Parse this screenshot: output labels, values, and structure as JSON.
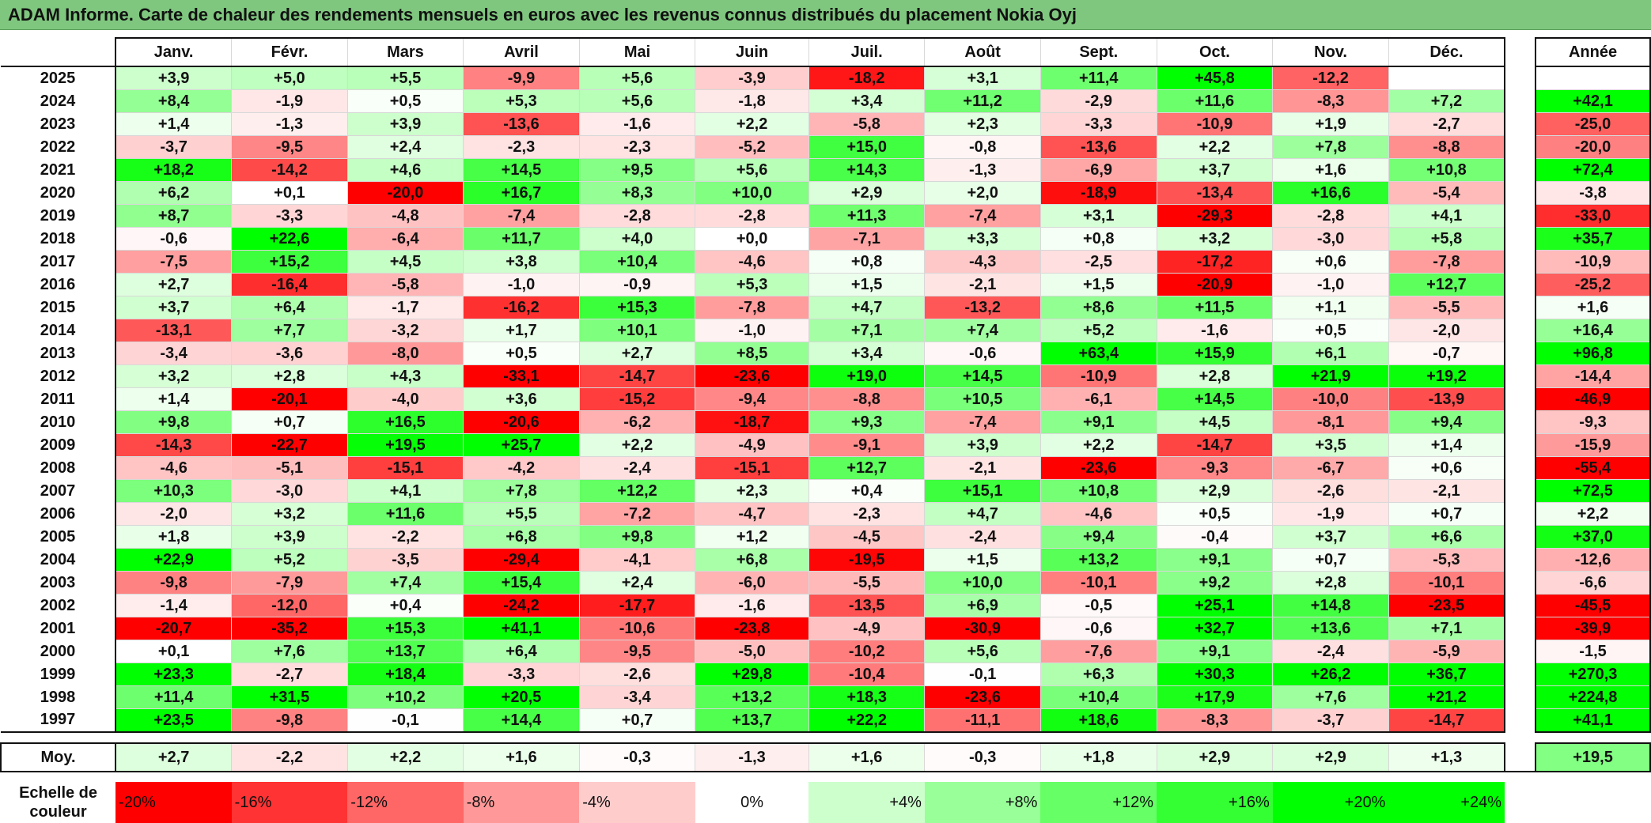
{
  "title": "ADAM Informe. Carte de chaleur des rendements mensuels en euros avec les revenus connus distribués du placement Nokia Oyj",
  "headers": {
    "months": [
      "Janv.",
      "Févr.",
      "Mars",
      "Avril",
      "Mai",
      "Juin",
      "Juil.",
      "Août",
      "Sept.",
      "Oct.",
      "Nov.",
      "Déc."
    ],
    "year": "Année"
  },
  "avg_label": "Moy.",
  "scale_label": "Echelle de couleur",
  "colors": {
    "negative": "#ff0000",
    "neutral": "#ffffff",
    "positive": "#00ff00",
    "title_bg": "#7fc77f"
  },
  "chart_data": {
    "type": "heatmap",
    "title": "ADAM Informe. Carte de chaleur des rendements mensuels en euros avec les revenus connus distribués du placement Nokia Oyj",
    "columns": [
      "Janv.",
      "Févr.",
      "Mars",
      "Avril",
      "Mai",
      "Juin",
      "Juil.",
      "Août",
      "Sept.",
      "Oct.",
      "Nov.",
      "Déc."
    ],
    "rows": [
      {
        "year": "2025",
        "months": [
          "+3,9",
          "+5,0",
          "+5,5",
          "-9,9",
          "+5,6",
          "-3,9",
          "-18,2",
          "+3,1",
          "+11,4",
          "+45,8",
          "-12,2",
          ""
        ],
        "annual": ""
      },
      {
        "year": "2024",
        "months": [
          "+8,4",
          "-1,9",
          "+0,5",
          "+5,3",
          "+5,6",
          "-1,8",
          "+3,4",
          "+11,2",
          "-2,9",
          "+11,6",
          "-8,3",
          "+7,2"
        ],
        "annual": "+42,1"
      },
      {
        "year": "2023",
        "months": [
          "+1,4",
          "-1,3",
          "+3,9",
          "-13,6",
          "-1,6",
          "+2,2",
          "-5,8",
          "+2,3",
          "-3,3",
          "-10,9",
          "+1,9",
          "-2,7"
        ],
        "annual": "-25,0"
      },
      {
        "year": "2022",
        "months": [
          "-3,7",
          "-9,5",
          "+2,4",
          "-2,3",
          "-2,3",
          "-5,2",
          "+15,0",
          "-0,8",
          "-13,6",
          "+2,2",
          "+7,8",
          "-8,8"
        ],
        "annual": "-20,0"
      },
      {
        "year": "2021",
        "months": [
          "+18,2",
          "-14,2",
          "+4,6",
          "+14,5",
          "+9,5",
          "+5,6",
          "+14,3",
          "-1,3",
          "-6,9",
          "+3,7",
          "+1,6",
          "+10,8"
        ],
        "annual": "+72,4"
      },
      {
        "year": "2020",
        "months": [
          "+6,2",
          "+0,1",
          "-20,0",
          "+16,7",
          "+8,3",
          "+10,0",
          "+2,9",
          "+2,0",
          "-18,9",
          "-13,4",
          "+16,6",
          "-5,4"
        ],
        "annual": "-3,8"
      },
      {
        "year": "2019",
        "months": [
          "+8,7",
          "-3,3",
          "-4,8",
          "-7,4",
          "-2,8",
          "-2,8",
          "+11,3",
          "-7,4",
          "+3,1",
          "-29,3",
          "-2,8",
          "+4,1"
        ],
        "annual": "-33,0"
      },
      {
        "year": "2018",
        "months": [
          "-0,6",
          "+22,6",
          "-6,4",
          "+11,7",
          "+4,0",
          "+0,0",
          "-7,1",
          "+3,3",
          "+0,8",
          "+3,2",
          "-3,0",
          "+5,8"
        ],
        "annual": "+35,7"
      },
      {
        "year": "2017",
        "months": [
          "-7,5",
          "+15,2",
          "+4,5",
          "+3,8",
          "+10,4",
          "-4,6",
          "+0,8",
          "-4,3",
          "-2,5",
          "-17,2",
          "+0,6",
          "-7,8"
        ],
        "annual": "-10,9"
      },
      {
        "year": "2016",
        "months": [
          "+2,7",
          "-16,4",
          "-5,8",
          "-1,0",
          "-0,9",
          "+5,3",
          "+1,5",
          "-2,1",
          "+1,5",
          "-20,9",
          "-1,0",
          "+12,7"
        ],
        "annual": "-25,2"
      },
      {
        "year": "2015",
        "months": [
          "+3,7",
          "+6,4",
          "-1,7",
          "-16,2",
          "+15,3",
          "-7,8",
          "+4,7",
          "-13,2",
          "+8,6",
          "+11,5",
          "+1,1",
          "-5,5"
        ],
        "annual": "+1,6"
      },
      {
        "year": "2014",
        "months": [
          "-13,1",
          "+7,7",
          "-3,2",
          "+1,7",
          "+10,1",
          "-1,0",
          "+7,1",
          "+7,4",
          "+5,2",
          "-1,6",
          "+0,5",
          "-2,0"
        ],
        "annual": "+16,4"
      },
      {
        "year": "2013",
        "months": [
          "-3,4",
          "-3,6",
          "-8,0",
          "+0,5",
          "+2,7",
          "+8,5",
          "+3,4",
          "-0,6",
          "+63,4",
          "+15,9",
          "+6,1",
          "-0,7"
        ],
        "annual": "+96,8"
      },
      {
        "year": "2012",
        "months": [
          "+3,2",
          "+2,8",
          "+4,3",
          "-33,1",
          "-14,7",
          "-23,6",
          "+19,0",
          "+14,5",
          "-10,9",
          "+2,8",
          "+21,9",
          "+19,2"
        ],
        "annual": "-14,4"
      },
      {
        "year": "2011",
        "months": [
          "+1,4",
          "-20,1",
          "-4,0",
          "+3,6",
          "-15,2",
          "-9,4",
          "-8,8",
          "+10,5",
          "-6,1",
          "+14,5",
          "-10,0",
          "-13,9"
        ],
        "annual": "-46,9"
      },
      {
        "year": "2010",
        "months": [
          "+9,8",
          "+0,7",
          "+16,5",
          "-20,6",
          "-6,2",
          "-18,7",
          "+9,3",
          "-7,4",
          "+9,1",
          "+4,5",
          "-8,1",
          "+9,4"
        ],
        "annual": "-9,3"
      },
      {
        "year": "2009",
        "months": [
          "-14,3",
          "-22,7",
          "+19,5",
          "+25,7",
          "+2,2",
          "-4,9",
          "-9,1",
          "+3,9",
          "+2,2",
          "-14,7",
          "+3,5",
          "+1,4"
        ],
        "annual": "-15,9"
      },
      {
        "year": "2008",
        "months": [
          "-4,6",
          "-5,1",
          "-15,1",
          "-4,2",
          "-2,4",
          "-15,1",
          "+12,7",
          "-2,1",
          "-23,6",
          "-9,3",
          "-6,7",
          "+0,6"
        ],
        "annual": "-55,4"
      },
      {
        "year": "2007",
        "months": [
          "+10,3",
          "-3,0",
          "+4,1",
          "+7,8",
          "+12,2",
          "+2,3",
          "+0,4",
          "+15,1",
          "+10,8",
          "+2,9",
          "-2,6",
          "-2,1"
        ],
        "annual": "+72,5"
      },
      {
        "year": "2006",
        "months": [
          "-2,0",
          "+3,2",
          "+11,6",
          "+5,5",
          "-7,2",
          "-4,7",
          "-2,3",
          "+4,7",
          "-4,6",
          "+0,5",
          "-1,9",
          "+0,7"
        ],
        "annual": "+2,2"
      },
      {
        "year": "2005",
        "months": [
          "+1,8",
          "+3,9",
          "-2,2",
          "+6,8",
          "+9,8",
          "+1,2",
          "-4,5",
          "-2,4",
          "+9,4",
          "-0,4",
          "+3,7",
          "+6,6"
        ],
        "annual": "+37,0"
      },
      {
        "year": "2004",
        "months": [
          "+22,9",
          "+5,2",
          "-3,5",
          "-29,4",
          "-4,1",
          "+6,8",
          "-19,5",
          "+1,5",
          "+13,2",
          "+9,1",
          "+0,7",
          "-5,3"
        ],
        "annual": "-12,6"
      },
      {
        "year": "2003",
        "months": [
          "-9,8",
          "-7,9",
          "+7,4",
          "+15,4",
          "+2,4",
          "-6,0",
          "-5,5",
          "+10,0",
          "-10,1",
          "+9,2",
          "+2,8",
          "-10,1"
        ],
        "annual": "-6,6"
      },
      {
        "year": "2002",
        "months": [
          "-1,4",
          "-12,0",
          "+0,4",
          "-24,2",
          "-17,7",
          "-1,6",
          "-13,5",
          "+6,9",
          "-0,5",
          "+25,1",
          "+14,8",
          "-23,5"
        ],
        "annual": "-45,5"
      },
      {
        "year": "2001",
        "months": [
          "-20,7",
          "-35,2",
          "+15,3",
          "+41,1",
          "-10,6",
          "-23,8",
          "-4,9",
          "-30,9",
          "-0,6",
          "+32,7",
          "+13,6",
          "+7,1"
        ],
        "annual": "-39,9"
      },
      {
        "year": "2000",
        "months": [
          "+0,1",
          "+7,6",
          "+13,7",
          "+6,4",
          "-9,5",
          "-5,0",
          "-10,2",
          "+5,6",
          "-7,6",
          "+9,1",
          "-2,4",
          "-5,9"
        ],
        "annual": "-1,5"
      },
      {
        "year": "1999",
        "months": [
          "+23,3",
          "-2,7",
          "+18,4",
          "-3,3",
          "-2,6",
          "+29,8",
          "-10,4",
          "-0,1",
          "+6,3",
          "+30,3",
          "+26,2",
          "+36,7"
        ],
        "annual": "+270,3"
      },
      {
        "year": "1998",
        "months": [
          "+11,4",
          "+31,5",
          "+10,2",
          "+20,5",
          "-3,4",
          "+13,2",
          "+18,3",
          "-23,6",
          "+10,4",
          "+17,9",
          "+7,6",
          "+21,2"
        ],
        "annual": "+224,8"
      },
      {
        "year": "1997",
        "months": [
          "+23,5",
          "-9,8",
          "-0,1",
          "+14,4",
          "+0,7",
          "+13,7",
          "+22,2",
          "-11,1",
          "+18,6",
          "-8,3",
          "-3,7",
          "-14,7"
        ],
        "annual": "+41,1"
      }
    ],
    "average": {
      "months": [
        "+2,7",
        "-2,2",
        "+2,2",
        "+1,6",
        "-0,3",
        "-1,3",
        "+1,6",
        "-0,3",
        "+1,8",
        "+2,9",
        "+2,9",
        "+1,3"
      ],
      "annual": "+19,5"
    },
    "scale": [
      "-20%",
      "-16%",
      "-12%",
      "-8%",
      "-4%",
      "0%",
      "+4%",
      "+8%",
      "+12%",
      "+16%",
      "+20%",
      "+24%"
    ]
  }
}
